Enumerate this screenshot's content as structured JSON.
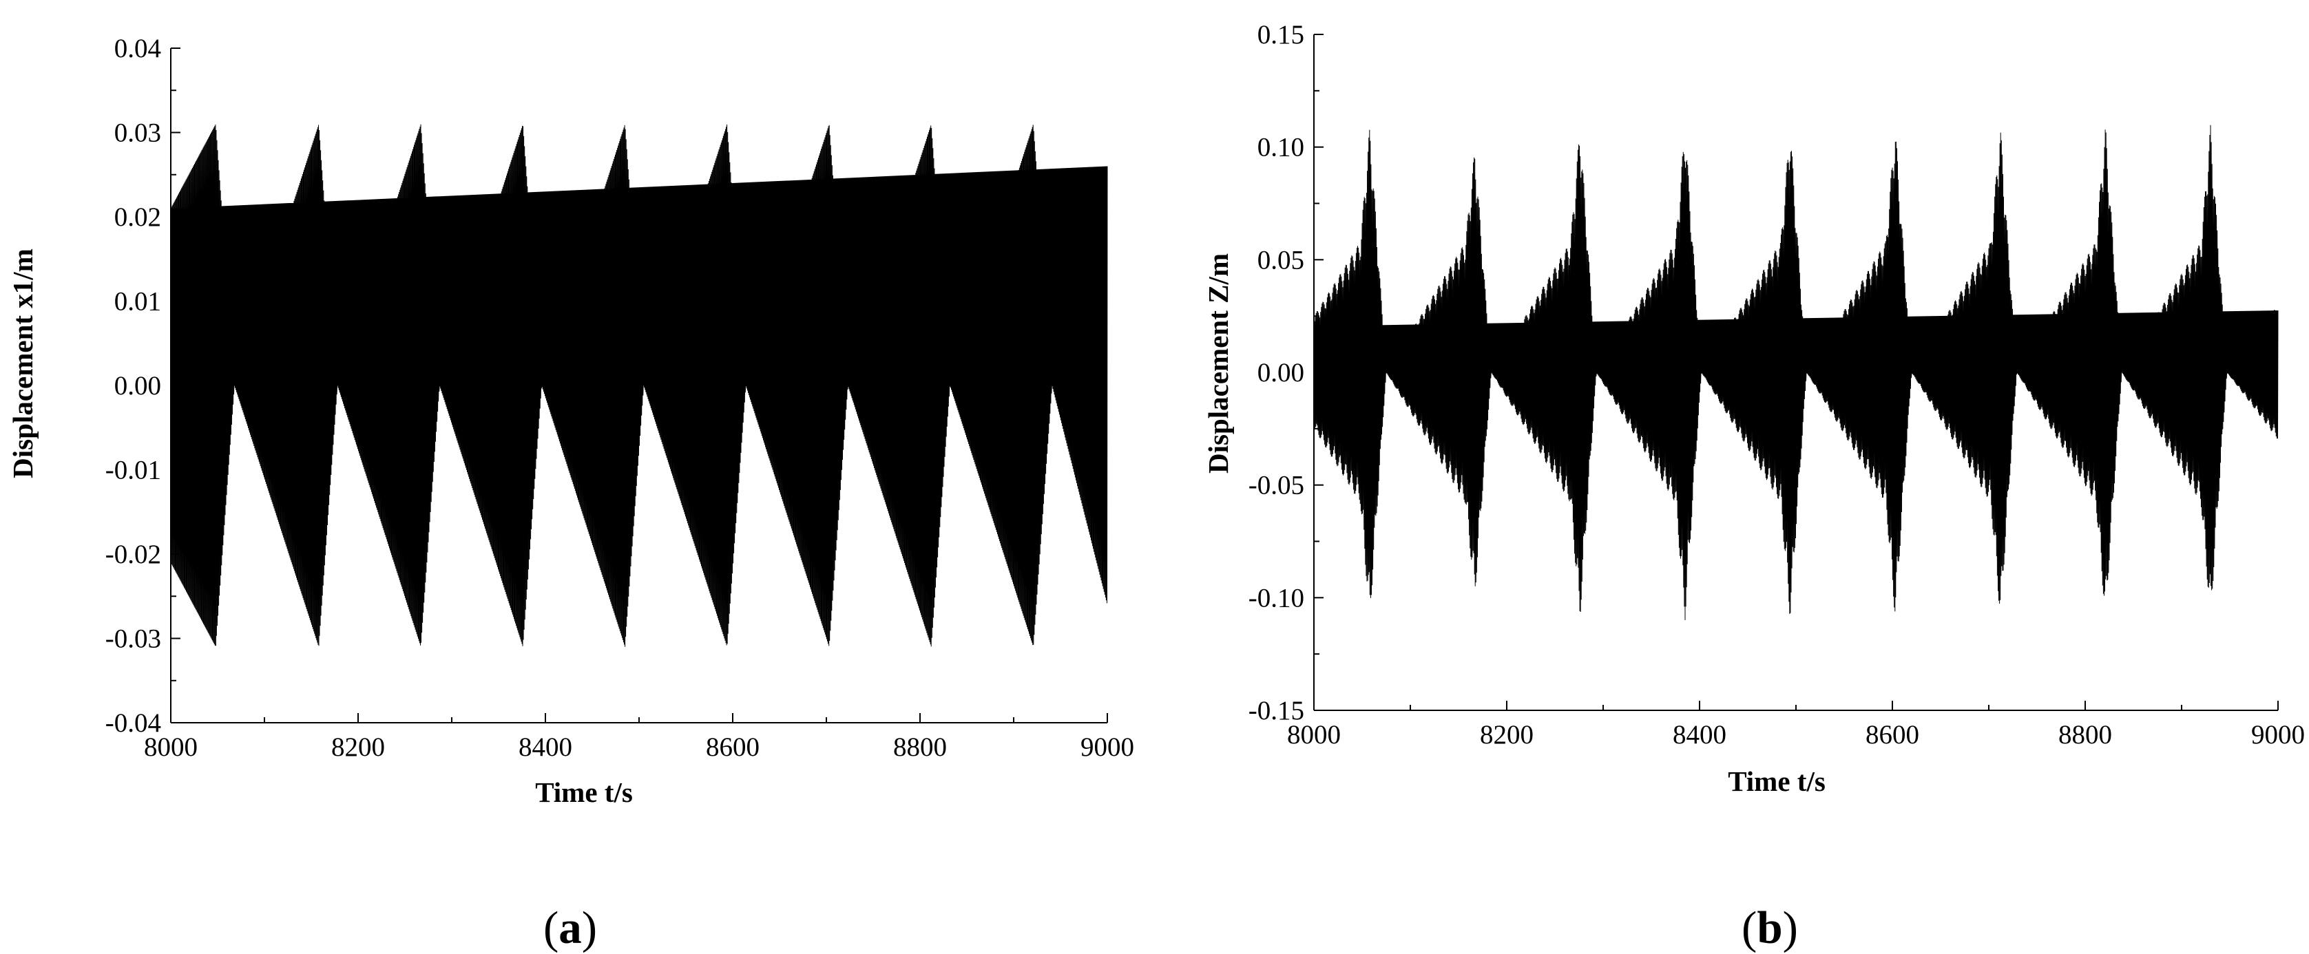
{
  "colors": {
    "signal": "#000000",
    "axes": "#000000",
    "background": "#ffffff"
  },
  "chart_data": [
    {
      "panel": "(a)",
      "panel_letter": "a",
      "type": "line",
      "title": "",
      "xlabel": "Time t/s",
      "ylabel": "Displacement x1/m",
      "xlim": [
        8000,
        9000
      ],
      "ylim": [
        -0.04,
        0.04
      ],
      "x_ticks": [
        "8000",
        "8200",
        "8400",
        "8600",
        "8800",
        "9000"
      ],
      "y_ticks": [
        "-0.04",
        "-0.03",
        "-0.02",
        "-0.01",
        "0.00",
        "0.01",
        "0.02",
        "0.03",
        "0.04"
      ],
      "grid": false,
      "legend": "none",
      "series": [
        {
          "style": "dense oscillation with beat envelope",
          "envelope_x": [
            8000,
            8048,
            8068,
            8158,
            8178,
            8267,
            8287,
            8376,
            8396,
            8485,
            8505,
            8594,
            8614,
            8703,
            8723,
            8812,
            8832,
            8921,
            8941,
            9000
          ],
          "envelope_amplitude": [
            0.021,
            0.031,
            0.0,
            0.031,
            0.0,
            0.031,
            0.0,
            0.031,
            0.0,
            0.031,
            0.0,
            0.031,
            0.0,
            0.031,
            0.0,
            0.031,
            0.0,
            0.031,
            0.0,
            0.026
          ]
        }
      ]
    },
    {
      "panel": "(b)",
      "panel_letter": "b",
      "type": "line",
      "title": "",
      "xlabel": "Time t/s",
      "ylabel": "Displacement Z/m",
      "xlim": [
        8000,
        9000
      ],
      "ylim": [
        -0.15,
        0.15
      ],
      "x_ticks": [
        "8000",
        "8200",
        "8400",
        "8600",
        "8800",
        "9000"
      ],
      "y_ticks": [
        "-0.15",
        "-0.10",
        "-0.05",
        "0.00",
        "0.05",
        "0.10",
        "0.15"
      ],
      "grid": false,
      "legend": "none",
      "series": [
        {
          "style": "dense oscillation with decaying bursts",
          "envelope_x": [
            8000,
            8048,
            8058,
            8075,
            8157,
            8167,
            8184,
            8266,
            8276,
            8293,
            8375,
            8385,
            8402,
            8484,
            8494,
            8511,
            8593,
            8603,
            8620,
            8702,
            8712,
            8729,
            8811,
            8821,
            8838,
            8920,
            8930,
            8947,
            9000
          ],
          "envelope_amplitude": [
            0.025,
            0.058,
            0.11,
            0.0,
            0.058,
            0.1,
            0.0,
            0.058,
            0.11,
            0.0,
            0.058,
            0.11,
            0.0,
            0.058,
            0.11,
            0.0,
            0.058,
            0.11,
            0.0,
            0.058,
            0.11,
            0.0,
            0.058,
            0.11,
            0.0,
            0.058,
            0.11,
            0.0,
            0.03
          ]
        }
      ]
    }
  ]
}
